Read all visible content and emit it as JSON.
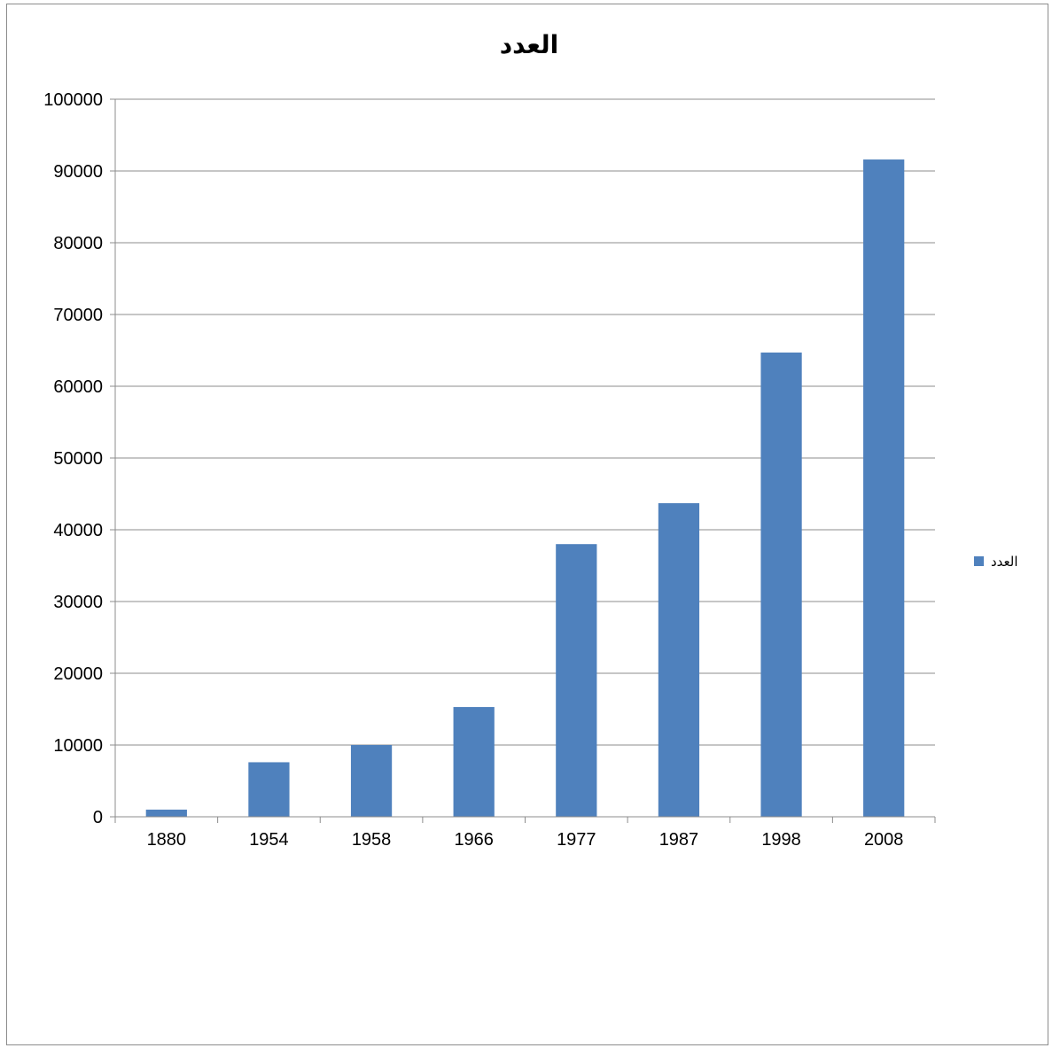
{
  "chart_data": {
    "type": "bar",
    "title": "العدد",
    "categories": [
      "1880",
      "1954",
      "1958",
      "1966",
      "1977",
      "1987",
      "1998",
      "2008"
    ],
    "series": [
      {
        "name": "العدد",
        "color": "#4f81bd",
        "values": [
          1000,
          7600,
          10000,
          15300,
          38000,
          43700,
          64700,
          91600
        ]
      }
    ],
    "ylim": [
      0,
      100000
    ],
    "yticks": [
      0,
      10000,
      20000,
      30000,
      40000,
      50000,
      60000,
      70000,
      80000,
      90000,
      100000
    ],
    "grid": true,
    "legend_position": "right",
    "xlabel": "",
    "ylabel": ""
  }
}
